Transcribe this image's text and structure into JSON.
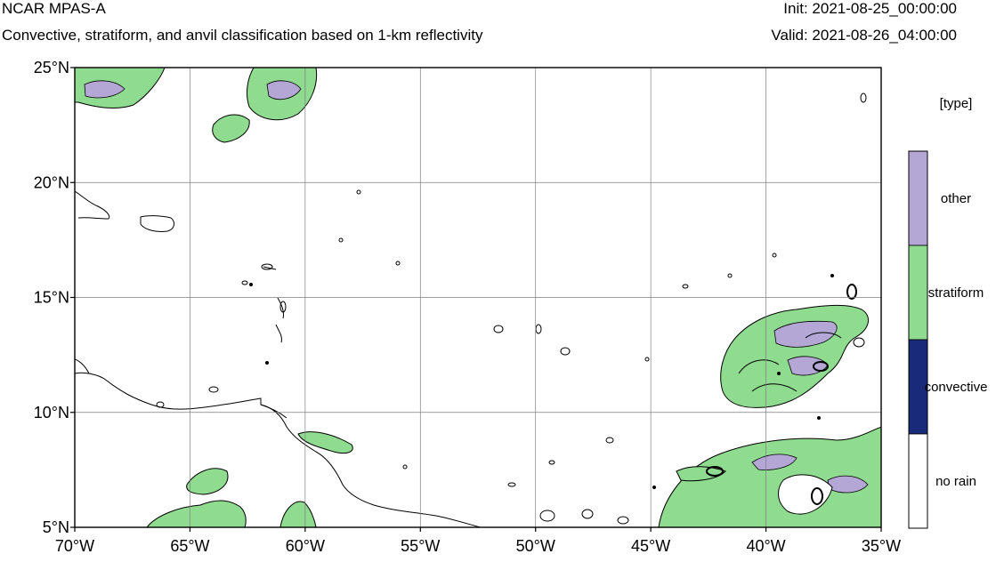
{
  "header": {
    "title": "NCAR MPAS-A",
    "subtitle": "Convective, stratiform, and anvil classification based on 1-km reflectivity",
    "init": "Init: 2021-08-25_00:00:00",
    "valid": "Valid: 2021-08-26_04:00:00"
  },
  "map": {
    "lon_range": [
      -70,
      -35
    ],
    "lat_range": [
      5,
      25
    ],
    "lon_ticks": [
      {
        "value": -70,
        "label": "70°W"
      },
      {
        "value": -65,
        "label": "65°W"
      },
      {
        "value": -60,
        "label": "60°W"
      },
      {
        "value": -55,
        "label": "55°W"
      },
      {
        "value": -50,
        "label": "50°W"
      },
      {
        "value": -45,
        "label": "45°W"
      },
      {
        "value": -40,
        "label": "40°W"
      },
      {
        "value": -35,
        "label": "35°W"
      }
    ],
    "lat_ticks": [
      {
        "value": 5,
        "label": "5°N"
      },
      {
        "value": 10,
        "label": "10°N"
      },
      {
        "value": 15,
        "label": "15°N"
      },
      {
        "value": 20,
        "label": "20°N"
      },
      {
        "value": 25,
        "label": "25°N"
      }
    ],
    "grid": true
  },
  "legend": {
    "title": "[type]",
    "items": [
      {
        "label": "other",
        "color": "#b4a7d6"
      },
      {
        "label": "stratiform",
        "color": "#8fdb8f"
      },
      {
        "label": "convective",
        "color": "#1a2a7a"
      },
      {
        "label": "no rain",
        "color": "#ffffff"
      }
    ]
  }
}
